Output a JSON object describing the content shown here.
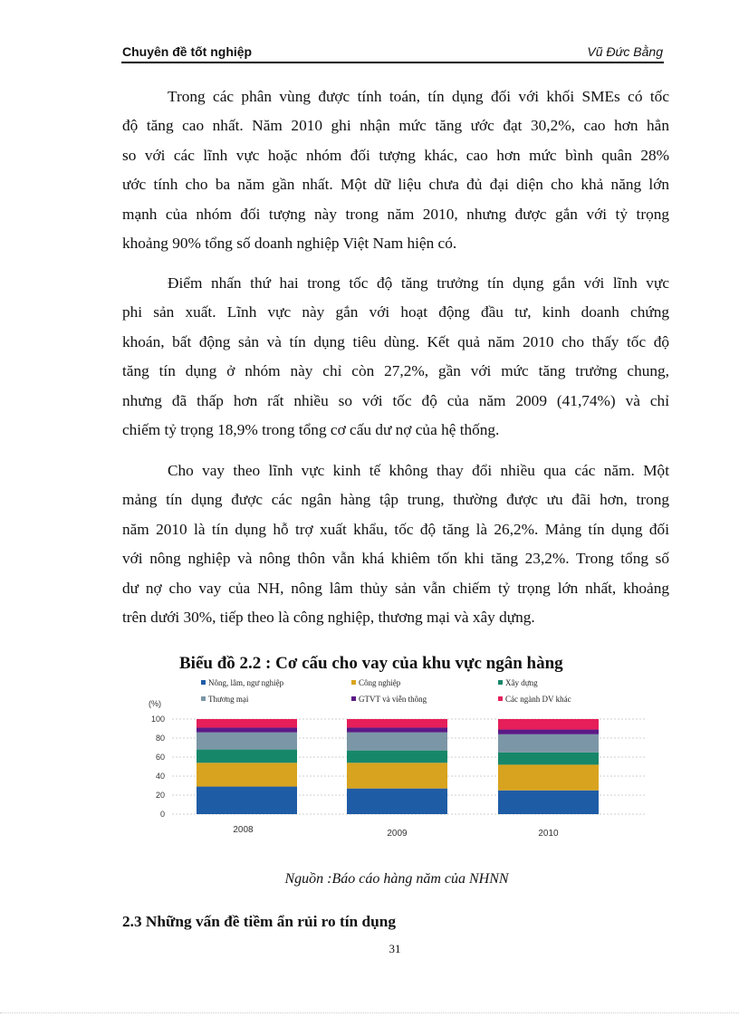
{
  "header": {
    "left": "Chuyên đề tốt nghiệp",
    "right": "Vũ Đức Bằng"
  },
  "paragraphs": [
    {
      "lines": [
        "Trong các phân vùng được tính toán, tín dụng đối với khối SMEs có tốc",
        "độ tăng cao nhất. Năm 2010 ghi nhận mức tăng ước đạt 30,2%, cao hơn hẳn",
        "so với các lĩnh vực hoặc nhóm đối tượng khác, cao hơn mức bình quân 28%",
        "ước tính cho ba năm gần nhất. Một dữ liệu chưa đủ đại diện cho khả năng lớn",
        "mạnh của nhóm đối tượng này trong năm 2010, nhưng được gắn với tỷ trọng",
        "khoảng 90% tổng số doanh nghiệp Việt Nam hiện có."
      ]
    },
    {
      "lines": [
        "Điểm nhấn thứ hai trong tốc độ tăng trưởng tín dụng gắn với lĩnh vực",
        "phi sản xuất. Lĩnh vực này gắn với hoạt động đầu tư, kinh doanh chứng",
        "khoán, bất động sản và tín dụng tiêu dùng. Kết quả năm 2010 cho thấy tốc độ",
        "tăng tín dụng ở nhóm này chỉ còn 27,2%, gần với mức tăng trưởng chung,",
        "nhưng đã thấp hơn rất nhiều so với tốc độ của năm 2009 (41,74%) và chỉ",
        "chiếm tỷ trọng 18,9% trong tổng cơ cấu dư nợ của hệ thống."
      ]
    },
    {
      "lines": [
        "Cho vay theo lĩnh vực kinh tế không thay đổi nhiều qua các năm. Một",
        "mảng tín dụng được các ngân hàng tập trung, thường được ưu đãi hơn, trong",
        "năm 2010 là tín dụng hỗ trợ xuất khẩu, tốc độ tăng là 26,2%. Mảng tín dụng đối",
        "với nông nghiệp và nông thôn vẫn khá khiêm tốn khi tăng 23,2%. Trong tổng số",
        "dư nợ cho vay của NH, nông lâm thủy sản vẫn chiếm tỷ trọng lớn nhất, khoảng",
        "trên dưới 30%, tiếp theo là công nghiệp, thương mại và xây dựng."
      ]
    }
  ],
  "chart_data": {
    "type": "bar",
    "stacked": true,
    "title": "Biểu đồ 2.2 : Cơ cấu cho vay của khu vực ngân hàng",
    "ylabel": "(%)",
    "xlabel": "",
    "ylim": [
      0,
      100
    ],
    "yticks": [
      "0",
      "20",
      "40",
      "60",
      "80",
      "100"
    ],
    "grid": true,
    "legend_position": "top",
    "categories": [
      "2008",
      "2009",
      "2010"
    ],
    "series": [
      {
        "name": "Nông, lâm, ngư nghiệp",
        "color": "#1f5ca6",
        "values": [
          29,
          27,
          25
        ]
      },
      {
        "name": "Công nghiệp",
        "color": "#d8a31e",
        "values": [
          25,
          27,
          27
        ]
      },
      {
        "name": "Xây dựng",
        "color": "#17876a",
        "values": [
          14,
          13,
          13
        ]
      },
      {
        "name": "Thương mại",
        "color": "#7b96a6",
        "values": [
          18,
          19,
          19
        ]
      },
      {
        "name": "GTVT và viễn thông",
        "color": "#5a1a86",
        "values": [
          5,
          5,
          5
        ]
      },
      {
        "name": "Các ngành DV khác",
        "color": "#e61e5a",
        "values": [
          9,
          9,
          11
        ]
      }
    ]
  },
  "caption": "Nguồn :Báo cáo hàng năm của NHNN",
  "section_heading": "2.3 Những vấn đề tiềm ẩn rủi ro tín dụng",
  "page_number": "31"
}
